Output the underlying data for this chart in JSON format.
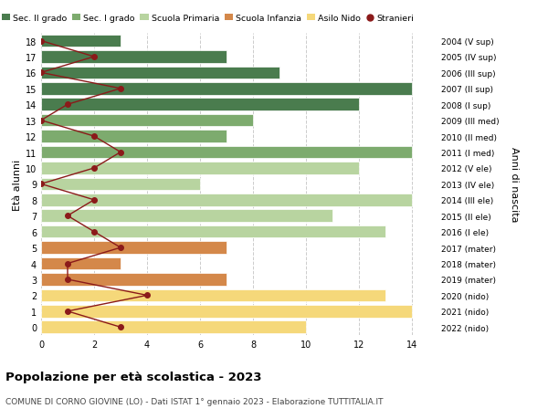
{
  "ages": [
    18,
    17,
    16,
    15,
    14,
    13,
    12,
    11,
    10,
    9,
    8,
    7,
    6,
    5,
    4,
    3,
    2,
    1,
    0
  ],
  "right_labels": [
    "2004 (V sup)",
    "2005 (IV sup)",
    "2006 (III sup)",
    "2007 (II sup)",
    "2008 (I sup)",
    "2009 (III med)",
    "2010 (II med)",
    "2011 (I med)",
    "2012 (V ele)",
    "2013 (IV ele)",
    "2014 (III ele)",
    "2015 (II ele)",
    "2016 (I ele)",
    "2017 (mater)",
    "2018 (mater)",
    "2019 (mater)",
    "2020 (nido)",
    "2021 (nido)",
    "2022 (nido)"
  ],
  "bar_values": [
    3,
    7,
    9,
    14,
    12,
    8,
    7,
    14,
    12,
    6,
    14,
    11,
    13,
    7,
    3,
    7,
    13,
    14,
    10
  ],
  "bar_colors": [
    "#4a7c4e",
    "#4a7c4e",
    "#4a7c4e",
    "#4a7c4e",
    "#4a7c4e",
    "#7dab6e",
    "#7dab6e",
    "#7dab6e",
    "#b8d4a0",
    "#b8d4a0",
    "#b8d4a0",
    "#b8d4a0",
    "#b8d4a0",
    "#d4884a",
    "#d4884a",
    "#d4884a",
    "#f5d87a",
    "#f5d87a",
    "#f5d87a"
  ],
  "stranieri_values": [
    0,
    2,
    0,
    3,
    1,
    0,
    2,
    3,
    2,
    0,
    2,
    1,
    2,
    3,
    1,
    1,
    4,
    1,
    3
  ],
  "legend_labels": [
    "Sec. II grado",
    "Sec. I grado",
    "Scuola Primaria",
    "Scuola Infanzia",
    "Asilo Nido",
    "Stranieri"
  ],
  "legend_colors": [
    "#4a7c4e",
    "#7dab6e",
    "#b8d4a0",
    "#d4884a",
    "#f5d87a",
    "#8b1a1a"
  ],
  "ylabel_left": "Età alunni",
  "ylabel_right": "Anni di nascita",
  "title": "Popolazione per età scolastica - 2023",
  "subtitle": "COMUNE DI CORNO GIOVINE (LO) - Dati ISTAT 1° gennaio 2023 - Elaborazione TUTTITALIA.IT",
  "xlim": [
    0,
    15
  ],
  "xticks": [
    0,
    2,
    4,
    6,
    8,
    10,
    12,
    14
  ],
  "bg_color": "#ffffff",
  "grid_color": "#cccccc",
  "bar_height": 0.78,
  "stranieri_line_color": "#8b1a1a",
  "stranieri_marker_color": "#8b1a1a"
}
